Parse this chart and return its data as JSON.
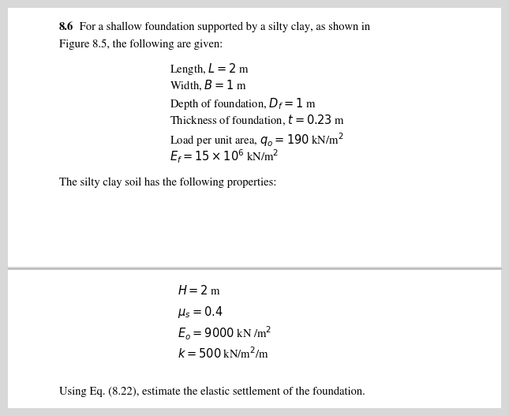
{
  "bg_color": "#d8d8d8",
  "upper_bg": "#ffffff",
  "lower_bg": "#ffffff",
  "divider_color": "#b0b0b0",
  "title_bold": "8.6",
  "title_rest": " For a shallow foundation supported by a silty clay, as shown in",
  "line2": "Figure 8.5, the following are given:",
  "items": [
    "Length, $L = 2$ m",
    "Width, $B = 1$ m",
    "Depth of foundation, $D_f = 1$ m",
    "Thickness of foundation, $t = 0.23$ m",
    "Load per unit area, $q_o = 190$ kN/m$^2$",
    "$E_f = 15 \\times 10^6$ kN/m$^2$"
  ],
  "middle_text": "The silty clay soil has the following properties:",
  "lower_items": [
    "$H = 2$ m",
    "$\\mu_s = 0.4$",
    "$E_o = 9000$ kN /m$^2$",
    "$k = 500$ kN/m$^2$/m"
  ],
  "footer": "Using Eq. (8.22), estimate the elastic settlement of the foundation.",
  "font_size": 10.5
}
